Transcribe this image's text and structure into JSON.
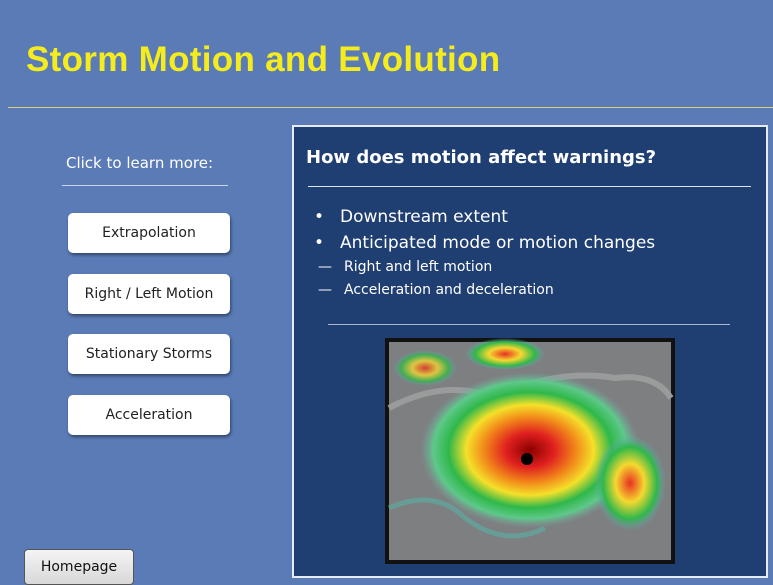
{
  "header": {
    "title": "Storm Motion and Evolution"
  },
  "sidebar": {
    "prompt": "Click to learn more:",
    "buttons": [
      "Extrapolation",
      "Right / Left Motion",
      "Stationary Storms",
      "Acceleration"
    ]
  },
  "footer": {
    "home_button": "Homepage"
  },
  "panel": {
    "heading": "How does motion affect warnings?",
    "bullets": [
      {
        "text": "Downstream extent",
        "subitems": []
      },
      {
        "text": "Anticipated mode or motion changes",
        "subitems": [
          "Right and left motion",
          "Acceleration and deceleration"
        ]
      }
    ]
  }
}
